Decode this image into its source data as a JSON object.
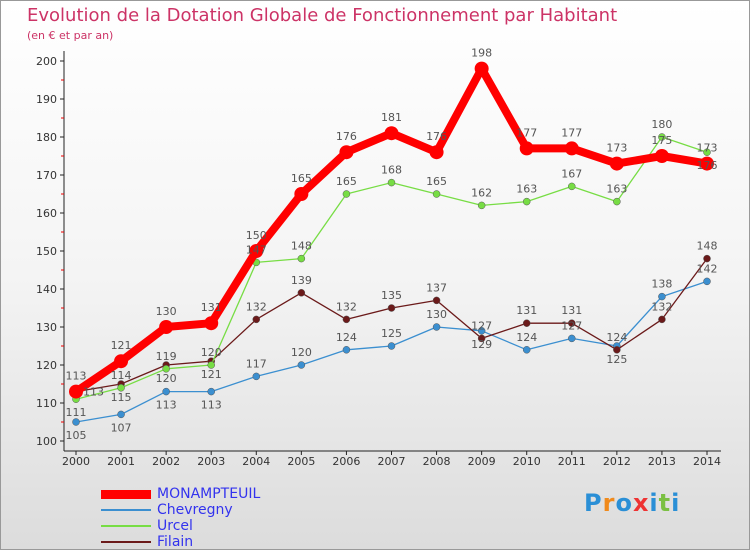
{
  "chart_data": {
    "type": "line",
    "title": "Evolution de la Dotation Globale de Fonctionnement par Habitant",
    "subtitle": "(en € et par an)",
    "xlabel": "",
    "ylabel": "",
    "x": [
      2000,
      2001,
      2002,
      2003,
      2004,
      2005,
      2006,
      2007,
      2008,
      2009,
      2010,
      2011,
      2012,
      2013,
      2014
    ],
    "ylim": [
      100,
      200
    ],
    "yticks": [
      100,
      110,
      120,
      130,
      140,
      150,
      160,
      170,
      180,
      190,
      200
    ],
    "grid": false,
    "legend_position": "bottom-left",
    "series": [
      {
        "name": "MONAMPTEUIL",
        "color": "#ff0000",
        "values": [
          113,
          121,
          130,
          131,
          150,
          165,
          176,
          181,
          176,
          198,
          177,
          177,
          173,
          175,
          173
        ]
      },
      {
        "name": "Chevregny",
        "color": "#3b8fd0",
        "values": [
          105,
          107,
          113,
          113,
          117,
          120,
          124,
          125,
          130,
          129,
          124,
          127,
          125,
          138,
          142
        ]
      },
      {
        "name": "Urcel",
        "color": "#77dd44",
        "values": [
          111,
          114,
          119,
          120,
          147,
          148,
          165,
          168,
          165,
          162,
          163,
          167,
          163,
          180,
          176
        ]
      },
      {
        "name": "Filain",
        "color": "#6b1a1a",
        "values": [
          113,
          115,
          120,
          121,
          132,
          139,
          132,
          135,
          137,
          127,
          131,
          131,
          124,
          132,
          148
        ]
      }
    ]
  },
  "logo": {
    "text": "Proxiti"
  }
}
